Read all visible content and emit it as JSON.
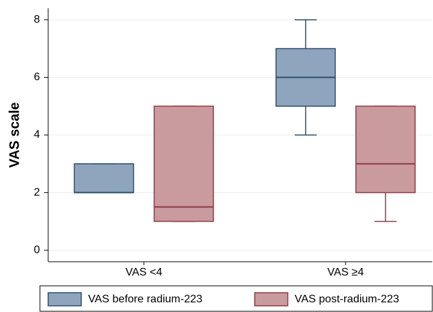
{
  "chart_data": {
    "type": "box",
    "y_label": "VAS scale",
    "categories": [
      "VAS <4",
      "VAS ≥4"
    ],
    "series": [
      {
        "name": "VAS before radium-223",
        "color": "#8fa5bd",
        "edge": "#2d4e6d",
        "values": [
          {
            "min": 2,
            "q1": 2,
            "median": 2,
            "q3": 3,
            "max": 3
          },
          {
            "min": 4,
            "q1": 5,
            "median": 6,
            "q3": 7,
            "max": 8
          }
        ]
      },
      {
        "name": "VAS post-radium-223",
        "color": "#c99a9e",
        "edge": "#8e3b44",
        "values": [
          {
            "min": 1,
            "q1": 1,
            "median": 1.5,
            "q3": 5,
            "max": 5
          },
          {
            "min": 1,
            "q1": 2,
            "median": 3,
            "q3": 5,
            "max": 5
          }
        ]
      }
    ],
    "ylim": [
      -0.4,
      8.4
    ],
    "yticks": [
      0,
      2,
      4,
      6,
      8
    ],
    "grid": true,
    "legend": "bottom"
  }
}
